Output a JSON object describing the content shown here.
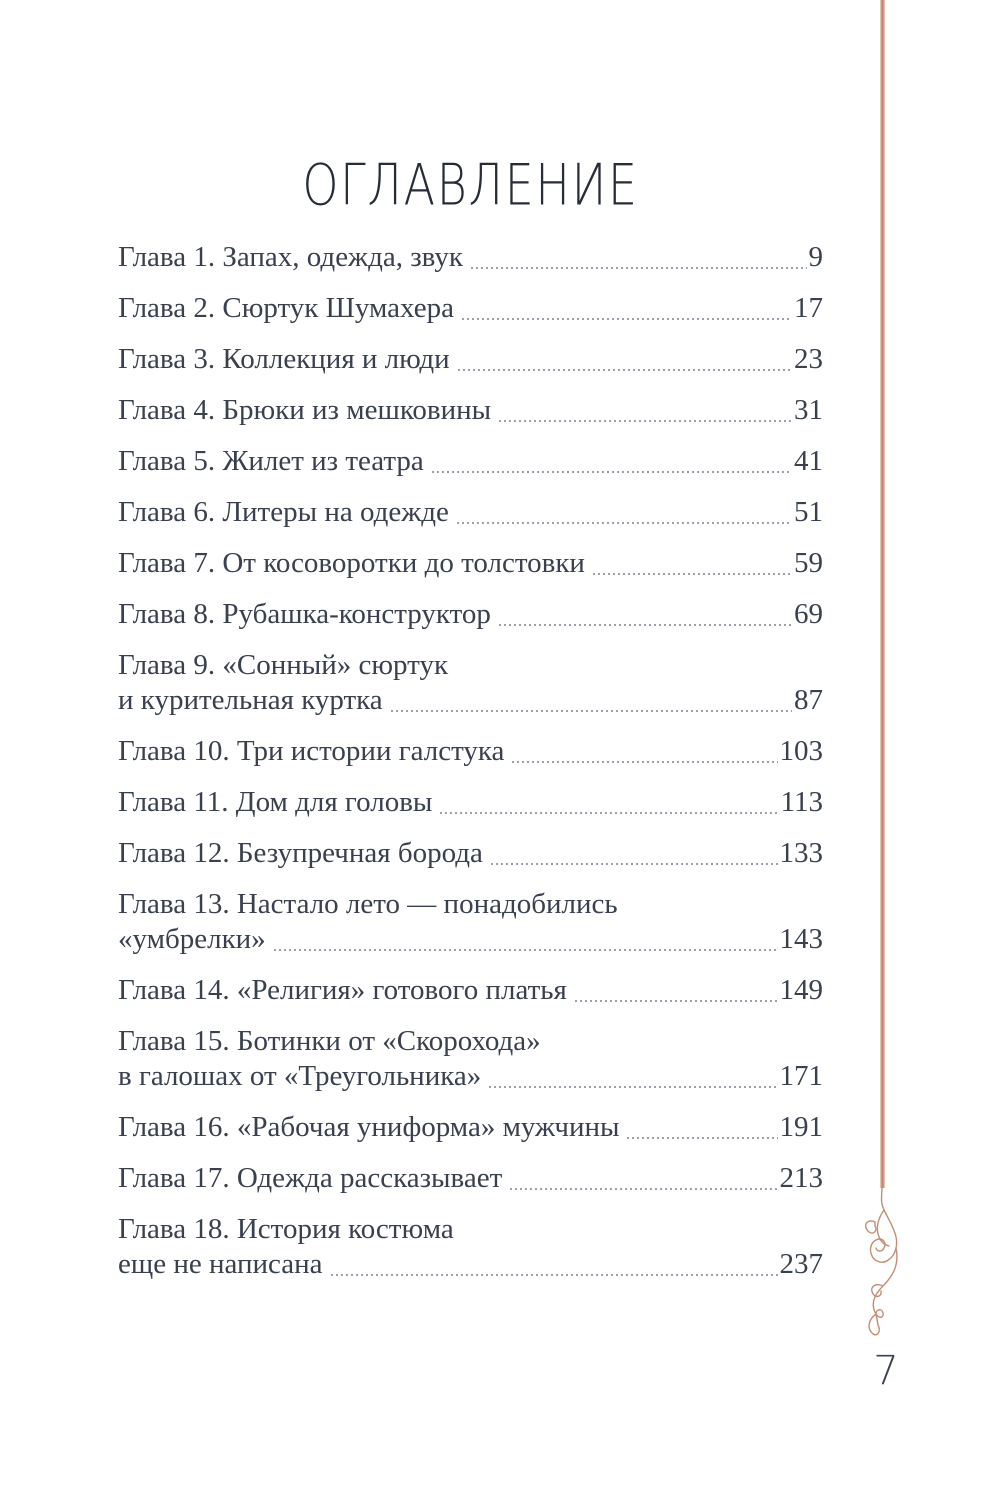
{
  "page": {
    "title": "ОГЛАВЛЕНИЕ",
    "folio": "7",
    "colors": {
      "accent": "#c08a72",
      "text": "#39404e",
      "title": "#262c38",
      "dots": "#9aa1ac"
    },
    "toc": [
      {
        "lines": [
          "Глава 1. Запах, одежда, звук"
        ],
        "page": "9"
      },
      {
        "lines": [
          "Глава 2. Сюртук Шумахера"
        ],
        "page": "17"
      },
      {
        "lines": [
          "Глава 3. Коллекция и люди"
        ],
        "page": "23"
      },
      {
        "lines": [
          "Глава 4. Брюки из мешковины"
        ],
        "page": "31"
      },
      {
        "lines": [
          "Глава 5. Жилет из театра"
        ],
        "page": "41"
      },
      {
        "lines": [
          "Глава 6. Литеры на одежде"
        ],
        "page": "51"
      },
      {
        "lines": [
          "Глава 7. От косоворотки до толстовки"
        ],
        "page": "59"
      },
      {
        "lines": [
          "Глава 8. Рубашка-конструктор"
        ],
        "page": "69"
      },
      {
        "lines": [
          "Глава 9. «Сонный» сюртук",
          "и курительная куртка"
        ],
        "page": "87"
      },
      {
        "lines": [
          "Глава 10. Три истории галстука"
        ],
        "page": "103"
      },
      {
        "lines": [
          "Глава 11. Дом для головы"
        ],
        "page": "113"
      },
      {
        "lines": [
          "Глава 12. Безупречная борода"
        ],
        "page": "133"
      },
      {
        "lines": [
          "Глава 13. Настало лето — понадобились",
          "«умбрелки»"
        ],
        "page": "143"
      },
      {
        "lines": [
          "Глава 14. «Религия» готового платья"
        ],
        "page": "149"
      },
      {
        "lines": [
          "Глава 15. Ботинки от «Скорохода»",
          "в галошах от «Треугольника»"
        ],
        "page": "171"
      },
      {
        "lines": [
          "Глава 16. «Рабочая униформа» мужчины"
        ],
        "page": "191"
      },
      {
        "lines": [
          "Глава 17. Одежда рассказывает"
        ],
        "page": "213"
      },
      {
        "lines": [
          "Глава 18. История костюма",
          "еще не написана"
        ],
        "page": "237"
      }
    ]
  }
}
